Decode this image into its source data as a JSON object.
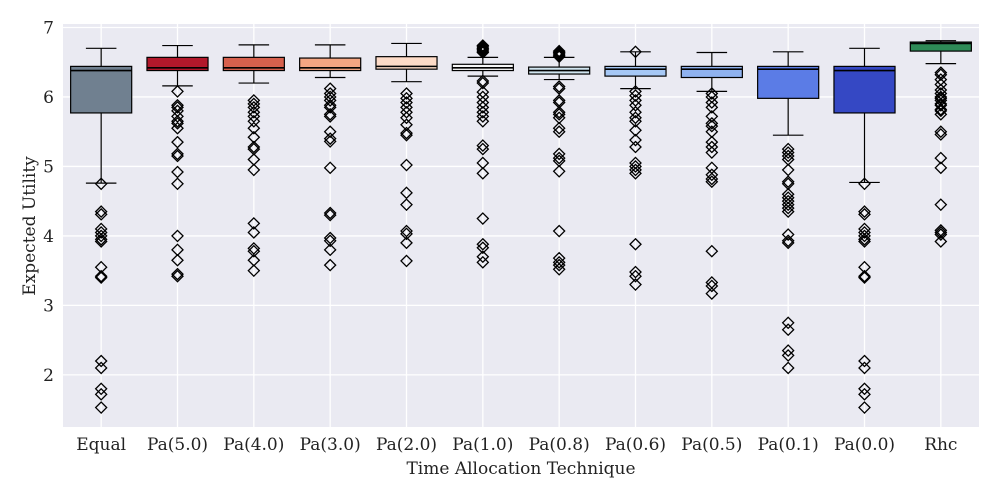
{
  "chart_data": {
    "type": "box",
    "title": "",
    "xlabel": "Time Allocation Technique",
    "ylabel": "Expected Utility",
    "ylim": [
      1.25,
      7.05
    ],
    "yticks": [
      2,
      3,
      4,
      5,
      6,
      7
    ],
    "grid": true,
    "background": "#eaeaf2",
    "grid_color": "#ffffff",
    "categories": [
      {
        "name": "Equal",
        "color": "#708090",
        "whislo": 4.76,
        "q1": 5.77,
        "med": 6.38,
        "q3": 6.44,
        "whishi": 6.7,
        "fliers": [
          4.75,
          4.35,
          4.31,
          4.1,
          4.05,
          4.0,
          3.95,
          3.92,
          3.55,
          3.42,
          3.4,
          2.2,
          2.1,
          1.8,
          1.72,
          1.53
        ]
      },
      {
        "name": "Pa(5.0)",
        "color": "#b2182b",
        "whislo": 6.16,
        "q1": 6.38,
        "med": 6.42,
        "q3": 6.57,
        "whishi": 6.74,
        "fliers": [
          6.08,
          5.88,
          5.85,
          5.8,
          5.72,
          5.65,
          5.62,
          5.55,
          5.35,
          5.18,
          5.15,
          4.92,
          4.75,
          4.0,
          3.8,
          3.65,
          3.45,
          3.42
        ]
      },
      {
        "name": "Pa(4.0)",
        "color": "#d6604d",
        "whislo": 6.2,
        "q1": 6.38,
        "med": 6.42,
        "q3": 6.57,
        "whishi": 6.75,
        "fliers": [
          5.95,
          5.9,
          5.85,
          5.78,
          5.72,
          5.65,
          5.55,
          5.42,
          5.28,
          5.25,
          5.1,
          4.95,
          4.18,
          4.05,
          3.82,
          3.78,
          3.65,
          3.5
        ]
      },
      {
        "name": "Pa(3.0)",
        "color": "#f4a582",
        "whislo": 6.28,
        "q1": 6.38,
        "med": 6.42,
        "q3": 6.56,
        "whishi": 6.75,
        "fliers": [
          6.12,
          6.05,
          6.0,
          5.95,
          5.88,
          5.85,
          5.75,
          5.72,
          5.5,
          5.4,
          5.36,
          4.98,
          4.33,
          4.3,
          3.97,
          3.93,
          3.8,
          3.58
        ]
      },
      {
        "name": "Pa(2.0)",
        "color": "#fddbc7",
        "whislo": 6.22,
        "q1": 6.4,
        "med": 6.44,
        "q3": 6.58,
        "whishi": 6.77,
        "fliers": [
          6.05,
          5.98,
          5.92,
          5.85,
          5.78,
          5.7,
          5.6,
          5.48,
          5.45,
          5.02,
          4.62,
          4.45,
          4.07,
          4.03,
          3.9,
          3.64
        ]
      },
      {
        "name": "Pa(1.0)",
        "color": "#f7f7f7",
        "whislo": 6.3,
        "q1": 6.38,
        "med": 6.42,
        "q3": 6.47,
        "whishi": 6.57,
        "fliers": [
          6.74,
          6.72,
          6.7,
          6.68,
          6.66,
          6.64,
          6.23,
          6.2,
          6.07,
          6.0,
          5.92,
          5.85,
          5.78,
          5.72,
          5.65,
          5.3,
          5.25,
          5.05,
          4.9,
          4.25,
          3.88,
          3.83,
          3.7,
          3.62
        ]
      },
      {
        "name": "Pa(0.8)",
        "color": "#d1e5f0",
        "whislo": 6.25,
        "q1": 6.33,
        "med": 6.38,
        "q3": 6.43,
        "whishi": 6.57,
        "fliers": [
          6.66,
          6.64,
          6.62,
          6.6,
          6.58,
          6.15,
          6.12,
          5.95,
          5.92,
          5.78,
          5.75,
          5.7,
          5.55,
          5.5,
          5.18,
          5.12,
          5.08,
          4.93,
          4.07,
          3.68,
          3.62,
          3.58,
          3.52
        ]
      },
      {
        "name": "Pa(0.6)",
        "color": "#a6c8f5",
        "whislo": 6.12,
        "q1": 6.3,
        "med": 6.4,
        "q3": 6.44,
        "whishi": 6.65,
        "fliers": [
          6.65,
          6.08,
          6.02,
          5.95,
          5.88,
          5.78,
          5.7,
          5.65,
          5.52,
          5.38,
          5.28,
          5.05,
          5.0,
          4.95,
          4.9,
          3.88,
          3.48,
          3.42,
          3.3
        ]
      },
      {
        "name": "Pa(0.5)",
        "color": "#8fb2ef",
        "whislo": 6.08,
        "q1": 6.28,
        "med": 6.4,
        "q3": 6.44,
        "whishi": 6.64,
        "fliers": [
          6.05,
          6.0,
          5.92,
          5.85,
          5.72,
          5.62,
          5.58,
          5.5,
          5.35,
          5.28,
          5.2,
          4.98,
          4.88,
          4.82,
          4.78,
          3.78,
          3.33,
          3.28,
          3.17
        ]
      },
      {
        "name": "Pa(0.1)",
        "color": "#5b7ce6",
        "whislo": 5.45,
        "q1": 5.98,
        "med": 6.4,
        "q3": 6.44,
        "whishi": 6.65,
        "fliers": [
          5.25,
          5.2,
          5.15,
          5.1,
          4.95,
          4.78,
          4.75,
          4.6,
          4.55,
          4.5,
          4.45,
          4.4,
          4.35,
          4.02,
          3.93,
          3.9,
          2.75,
          2.65,
          2.35,
          2.28,
          2.1
        ]
      },
      {
        "name": "Pa(0.0)",
        "color": "#3548c4",
        "whislo": 4.77,
        "q1": 5.77,
        "med": 6.38,
        "q3": 6.44,
        "whishi": 6.7,
        "fliers": [
          4.75,
          4.35,
          4.31,
          4.1,
          4.05,
          4.0,
          3.95,
          3.92,
          3.55,
          3.42,
          3.4,
          2.2,
          2.1,
          1.8,
          1.72,
          1.53
        ]
      },
      {
        "name": "Rhc",
        "color": "#2e8b57",
        "whislo": 6.48,
        "q1": 6.66,
        "med": 6.77,
        "q3": 6.79,
        "whishi": 6.81,
        "fliers": [
          6.35,
          6.32,
          6.25,
          6.18,
          6.1,
          6.05,
          6.0,
          5.98,
          5.95,
          5.9,
          5.88,
          5.82,
          5.8,
          5.75,
          5.5,
          5.46,
          5.12,
          4.98,
          4.45,
          4.08,
          4.05,
          4.02,
          3.92
        ]
      }
    ]
  }
}
